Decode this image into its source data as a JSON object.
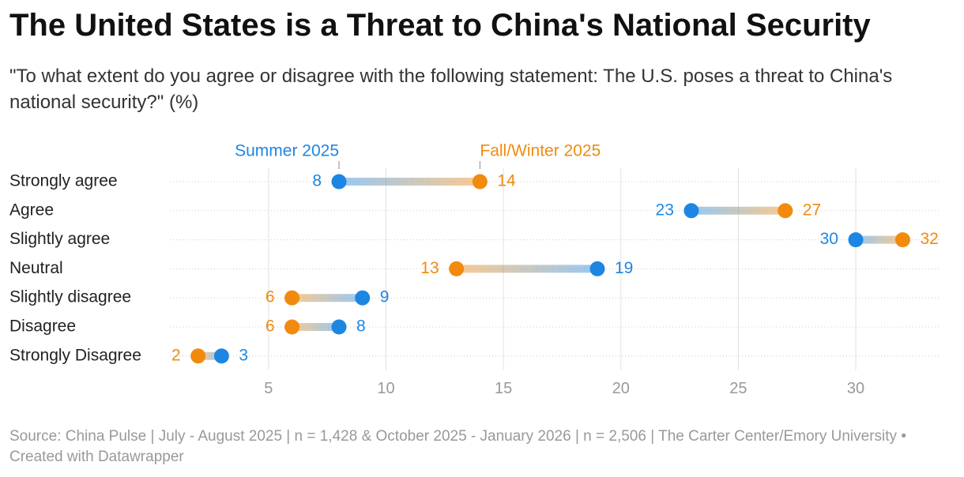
{
  "chart_data": {
    "type": "dumbbell",
    "title": "The United States is a Threat to China's National Security",
    "subtitle": "\"To what extent do you agree or disagree with the following statement: The U.S. poses a threat to China's national security?\" (%)",
    "source": "Source: China Pulse | July - August 2025 | n = 1,428 & October 2025 - January 2026 | n = 2,506 | The Carter Center/Emory University • Created with Datawrapper",
    "categories": [
      "Strongly agree",
      "Agree",
      "Slightly agree",
      "Neutral",
      "Slightly disagree",
      "Disagree",
      "Strongly Disagree"
    ],
    "series": [
      {
        "name": "Summer 2025",
        "color": "#1d86e2",
        "values": [
          8,
          23,
          30,
          19,
          9,
          8,
          3
        ]
      },
      {
        "name": "Fall/Winter 2025",
        "color": "#f28a0e",
        "values": [
          14,
          27,
          32,
          13,
          6,
          6,
          2
        ]
      }
    ],
    "xlim": [
      0.8,
      33.6
    ],
    "xticks": [
      5,
      10,
      15,
      20,
      25,
      30
    ],
    "grid": true
  }
}
